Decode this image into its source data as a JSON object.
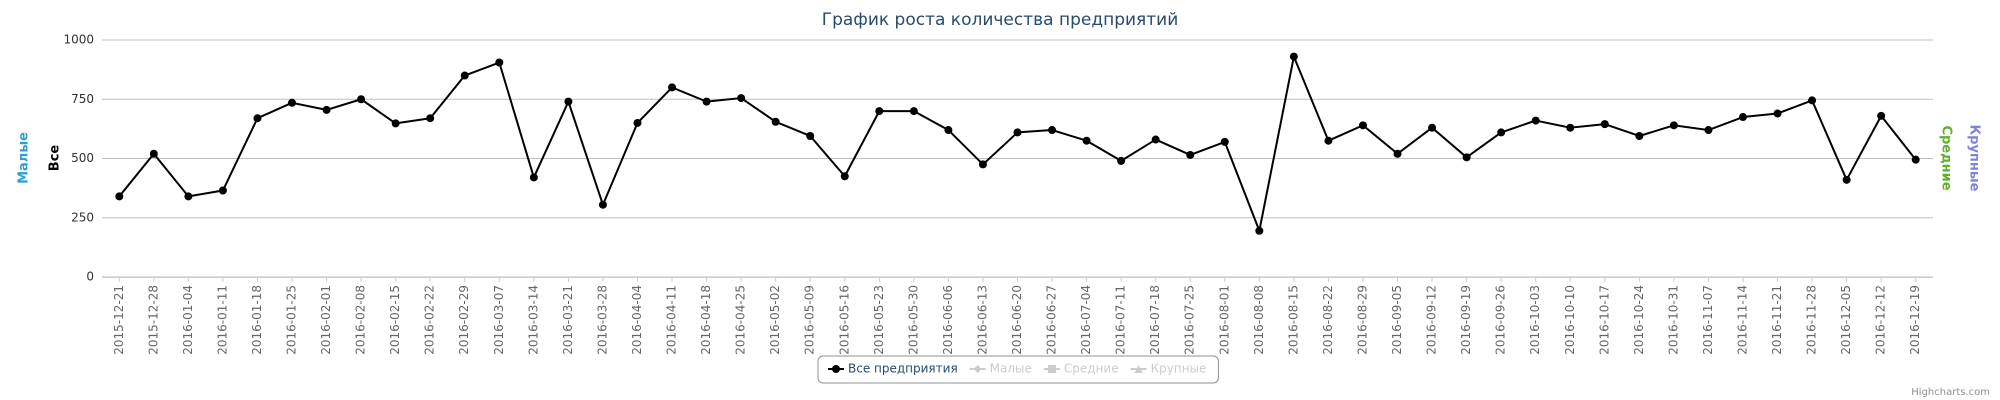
{
  "chart_data": {
    "type": "line",
    "title": "График роста количества предприятий",
    "categories": [
      "2015-12-21",
      "2015-12-28",
      "2016-01-04",
      "2016-01-11",
      "2016-01-18",
      "2016-01-25",
      "2016-02-01",
      "2016-02-08",
      "2016-02-15",
      "2016-02-22",
      "2016-02-29",
      "2016-03-07",
      "2016-03-14",
      "2016-03-21",
      "2016-03-28",
      "2016-04-04",
      "2016-04-11",
      "2016-04-18",
      "2016-04-25",
      "2016-05-02",
      "2016-05-09",
      "2016-05-16",
      "2016-05-23",
      "2016-05-30",
      "2016-06-06",
      "2016-06-13",
      "2016-06-20",
      "2016-06-27",
      "2016-07-04",
      "2016-07-11",
      "2016-07-18",
      "2016-07-25",
      "2016-08-01",
      "2016-08-08",
      "2016-08-15",
      "2016-08-22",
      "2016-08-29",
      "2016-09-05",
      "2016-09-12",
      "2016-09-19",
      "2016-09-26",
      "2016-10-03",
      "2016-10-10",
      "2016-10-17",
      "2016-10-24",
      "2016-10-31",
      "2016-11-07",
      "2016-11-14",
      "2016-11-21",
      "2016-11-28",
      "2016-12-05",
      "2016-12-12",
      "2016-12-19"
    ],
    "series": [
      {
        "name": "Все предприятия",
        "color": "#000000",
        "marker": "circle",
        "visible": true,
        "values": [
          340,
          520,
          340,
          365,
          670,
          735,
          705,
          750,
          648,
          670,
          850,
          905,
          420,
          740,
          305,
          650,
          800,
          740,
          755,
          655,
          595,
          425,
          700,
          700,
          620,
          475,
          610,
          620,
          575,
          490,
          580,
          515,
          570,
          195,
          930,
          575,
          640,
          520,
          630,
          505,
          610,
          660,
          630,
          645,
          595,
          640,
          620,
          675,
          690,
          745,
          410,
          680,
          495
        ]
      },
      {
        "name": "Малые",
        "color": "#2f9fd0",
        "marker": "diamond",
        "visible": false
      },
      {
        "name": "Средние",
        "color": "#5fb02a",
        "marker": "square",
        "visible": false
      },
      {
        "name": "Крупные",
        "color": "#7f83d6",
        "marker": "triangle",
        "visible": false
      }
    ],
    "yaxis_titles_left": [
      {
        "text": "Малые",
        "color": "#2f9fd0"
      },
      {
        "text": "Все",
        "color": "#000000"
      }
    ],
    "yaxis_titles_right": [
      {
        "text": "Средние",
        "color": "#5fb02a"
      },
      {
        "text": "Крупные",
        "color": "#7f83d6"
      }
    ],
    "ylim": [
      0,
      1000
    ],
    "yticks": [
      0,
      250,
      500,
      750,
      1000
    ],
    "grid": true,
    "credits": "Highcharts.com"
  }
}
